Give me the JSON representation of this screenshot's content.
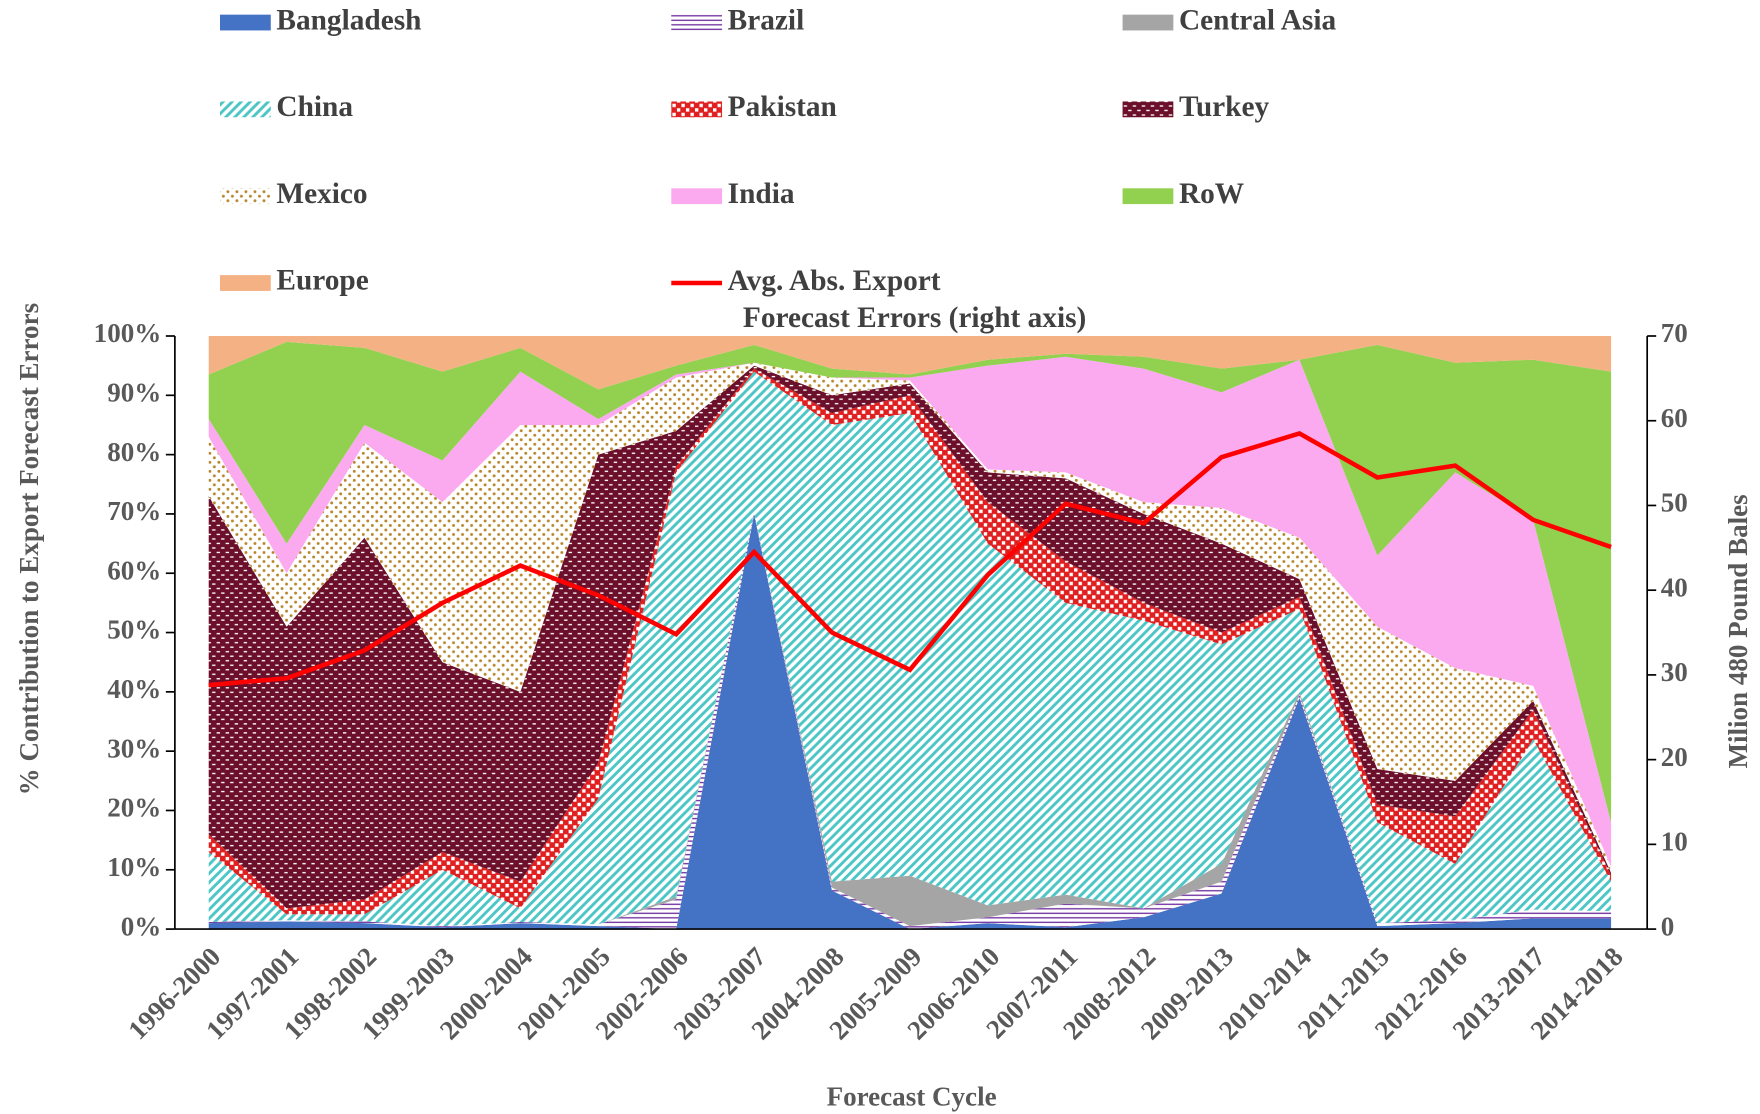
{
  "chart_data": {
    "type": "stacked-area",
    "x_label": "Forecast Cycle",
    "y_label": "% Contribution to Export Forecast Errors",
    "y2_label": "Milion 480 Pound Bales",
    "categories": [
      "1996-2000",
      "1997-2001",
      "1998-2002",
      "1999-2003",
      "2000-2004",
      "2001-2005",
      "2002-2006",
      "2003-2007",
      "2004-2008",
      "2005-2009",
      "2006-2010",
      "2007-2011",
      "2008-2012",
      "2009-2013",
      "2010-2014",
      "2011-2015",
      "2012-2016",
      "2013-2017",
      "2014-2018"
    ],
    "ylim": [
      0,
      100
    ],
    "yticks": [
      {
        "value": 0,
        "label": "0%"
      },
      {
        "value": 10,
        "label": "10%"
      },
      {
        "value": 20,
        "label": "20%"
      },
      {
        "value": 30,
        "label": "30%"
      },
      {
        "value": 40,
        "label": "40%"
      },
      {
        "value": 50,
        "label": "50%"
      },
      {
        "value": 60,
        "label": "60%"
      },
      {
        "value": 70,
        "label": "70%"
      },
      {
        "value": 80,
        "label": "80%"
      },
      {
        "value": 90,
        "label": "90%"
      },
      {
        "value": 100,
        "label": "100%"
      }
    ],
    "y2lim": [
      0,
      70
    ],
    "y2ticks": [
      0,
      10,
      20,
      30,
      40,
      50,
      60,
      70
    ],
    "legend": "top",
    "series": [
      {
        "name": "Bangladesh",
        "color": "#4472c4",
        "values": [
          1,
          1.3,
          1,
          0.3,
          1,
          0.5,
          0,
          70,
          6.5,
          0,
          1,
          0.3,
          2,
          6,
          39,
          0.5,
          1,
          1.8,
          1.8
        ]
      },
      {
        "name": "Brazil",
        "color": "#7030a0",
        "pattern": "hlines",
        "values": [
          0.2,
          0.2,
          0.3,
          0.2,
          0.2,
          0.3,
          5,
          0.3,
          0.5,
          0.5,
          1,
          4,
          1.5,
          2,
          0.5,
          0.5,
          0.5,
          1.5,
          1.2
        ]
      },
      {
        "name": "Central Asia",
        "color": "#a5a5a5",
        "values": [
          0,
          0,
          0,
          0,
          0,
          0,
          0.5,
          0,
          1,
          8.5,
          2,
          1.5,
          0,
          3,
          0.5,
          0,
          0,
          0,
          0
        ]
      },
      {
        "name": "China",
        "color": "#4bc5c5",
        "pattern": "stripes",
        "values": [
          11.8,
          1,
          1.2,
          9.5,
          2.3,
          21.2,
          71.5,
          23.7,
          77,
          78,
          61,
          49.2,
          48.5,
          37,
          14,
          17,
          9.5,
          28.7,
          5
        ]
      },
      {
        "name": "Pakistan",
        "color": "#e02020",
        "pattern": "checks",
        "values": [
          3,
          1,
          2.5,
          3,
          4.5,
          6,
          1,
          0.5,
          2,
          3,
          7,
          7,
          3,
          2,
          2,
          3,
          8,
          5,
          1
        ]
      },
      {
        "name": "Turkey",
        "color": "#6b0f2a",
        "pattern": "dashes",
        "values": [
          57,
          47.5,
          61,
          32,
          32,
          52,
          6,
          0.5,
          3,
          2,
          5,
          14,
          15,
          15,
          3,
          6,
          6,
          1.5,
          0.5
        ]
      },
      {
        "name": "Mexico",
        "color": "#b8862b",
        "pattern": "dots",
        "values": [
          10,
          9,
          16,
          27,
          45,
          5,
          9,
          0.5,
          3,
          0.5,
          0.5,
          1,
          2,
          6,
          7,
          24,
          19,
          2.5,
          1
        ]
      },
      {
        "name": "India",
        "color": "#fbaaf0",
        "values": [
          3,
          5,
          3,
          7,
          9,
          1,
          0.5,
          0,
          0,
          0.5,
          17.5,
          19.5,
          22.5,
          19.5,
          30,
          12,
          33,
          28,
          7.5
        ]
      },
      {
        "name": "RoW",
        "color": "#92d050",
        "values": [
          7.5,
          34,
          13,
          15,
          4,
          5,
          1.5,
          3,
          1.5,
          0.5,
          1,
          0.5,
          2,
          4,
          0,
          35.5,
          18.5,
          27,
          76
        ]
      },
      {
        "name": "Europe",
        "color": "#f4b183",
        "values": [
          6.5,
          1,
          2,
          6,
          2,
          9,
          5,
          1.5,
          5.5,
          6.5,
          4,
          3,
          3.5,
          5.5,
          4,
          1.5,
          4.5,
          4,
          6
        ]
      },
      {
        "name": "Avg. Abs. Export Forecast Errors (right axis)",
        "type": "line",
        "axis": "y2",
        "color": "#ff0000",
        "values": [
          28.8,
          29.6,
          32.9,
          38.5,
          42.9,
          39.4,
          34.8,
          44.5,
          35,
          30.6,
          41.8,
          50.2,
          47.9,
          55.7,
          58.5,
          53.3,
          54.7,
          48.3,
          45.1
        ]
      }
    ]
  }
}
